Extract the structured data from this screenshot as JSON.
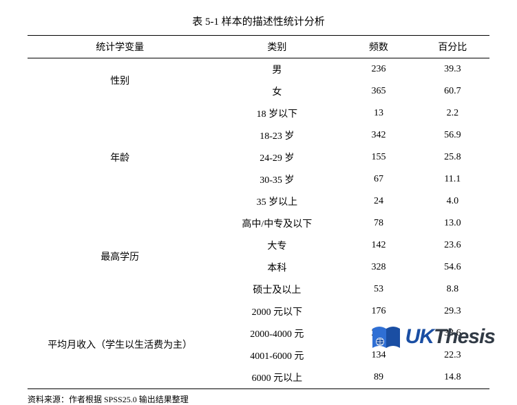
{
  "title": "表 5-1  样本的描述性统计分析",
  "columns": [
    "统计学变量",
    "类别",
    "频数",
    "百分比"
  ],
  "groups": [
    {
      "variable": "性别",
      "rows": [
        {
          "category": "男",
          "freq": "236",
          "pct": "39.3"
        },
        {
          "category": "女",
          "freq": "365",
          "pct": "60.7"
        }
      ]
    },
    {
      "variable": "年龄",
      "rows": [
        {
          "category": "18 岁以下",
          "freq": "13",
          "pct": "2.2"
        },
        {
          "category": "18-23 岁",
          "freq": "342",
          "pct": "56.9"
        },
        {
          "category": "24-29 岁",
          "freq": "155",
          "pct": "25.8"
        },
        {
          "category": "30-35 岁",
          "freq": "67",
          "pct": "11.1"
        },
        {
          "category": "35 岁以上",
          "freq": "24",
          "pct": "4.0"
        }
      ]
    },
    {
      "variable": "最高学历",
      "rows": [
        {
          "category": "高中/中专及以下",
          "freq": "78",
          "pct": "13.0"
        },
        {
          "category": "大专",
          "freq": "142",
          "pct": "23.6"
        },
        {
          "category": "本科",
          "freq": "328",
          "pct": "54.6"
        },
        {
          "category": "硕士及以上",
          "freq": "53",
          "pct": "8.8"
        }
      ]
    },
    {
      "variable": "平均月收入（学生以生活费为主）",
      "rows": [
        {
          "category": "2000 元以下",
          "freq": "176",
          "pct": "29.3"
        },
        {
          "category": "2000-4000 元",
          "freq": "202",
          "pct": "33.6"
        },
        {
          "category": "4001-6000 元",
          "freq": "134",
          "pct": "22.3"
        },
        {
          "category": "6000 元以上",
          "freq": "89",
          "pct": "14.8"
        }
      ]
    }
  ],
  "source": "资料来源：作者根据 SPSS25.0 输出结果整理",
  "watermark": {
    "uk": "UK",
    "thesis": "Thesis",
    "colors": {
      "book_left": "#2f6fd4",
      "book_right": "#1a4ea3",
      "globe": "#1a4ea3",
      "uk_color": "#1a4ea3",
      "thesis_color": "#313a45"
    }
  },
  "styling": {
    "background_color": "#ffffff",
    "text_color": "#000000",
    "border_color": "#000000",
    "title_fontsize": 15,
    "body_fontsize": 14,
    "source_fontsize": 12,
    "border_top_width": 1.5,
    "border_mid_width": 1,
    "border_bottom_width": 1.5
  }
}
